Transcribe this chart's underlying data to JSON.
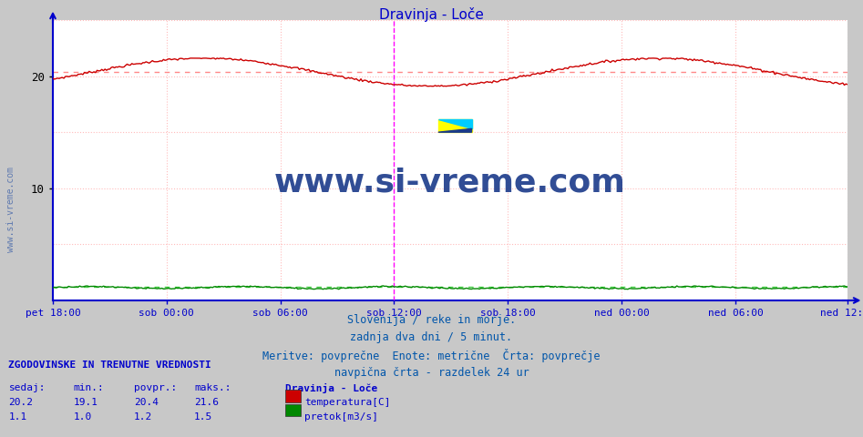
{
  "title": "Dravinja - Loče",
  "title_color": "#0000cc",
  "plot_bg_color": "#ffffff",
  "fig_bg_color": "#c8c8c8",
  "temp_color": "#cc0000",
  "flow_color": "#008800",
  "avg_temp_color": "#ff8888",
  "avg_flow_color": "#44cc44",
  "axis_color": "#0000cc",
  "grid_color": "#ffaaaa",
  "vline_color": "#ff00ff",
  "watermark": "www.si-vreme.com",
  "watermark_color": "#1a3a8a",
  "xlabels": [
    "pet 18:00",
    "sob 00:00",
    "sob 06:00",
    "sob 12:00",
    "sob 18:00",
    "ned 00:00",
    "ned 06:00",
    "ned 12:00"
  ],
  "xlabel_color": "#0000cc",
  "ylim": [
    0,
    25
  ],
  "temp_avg": 20.4,
  "flow_avg": 1.2,
  "temp_min": 19.1,
  "temp_max": 21.6,
  "flow_min": 1.0,
  "flow_max": 1.5,
  "temp_current": 20.2,
  "flow_current": 1.1,
  "info_line1": "Slovenija / reke in morje.",
  "info_line2": "zadnja dva dni / 5 minut.",
  "info_line3": "Meritve: povprečne  Enote: metrične  Črta: povprečje",
  "info_line4": "navpična črta - razdelek 24 ur",
  "info_color": "#0055aa",
  "legend_title": "Dravinja - Loče",
  "legend_temp": "temperatura[C]",
  "legend_flow": "pretok[m3/s]",
  "table_header": "ZGODOVINSKE IN TRENUTNE VREDNOSTI",
  "table_col1": "sedaj:",
  "table_col2": "min.:",
  "table_col3": "povpr.:",
  "table_col4": "maks.:",
  "table_color": "#0000cc",
  "num_points": 504
}
